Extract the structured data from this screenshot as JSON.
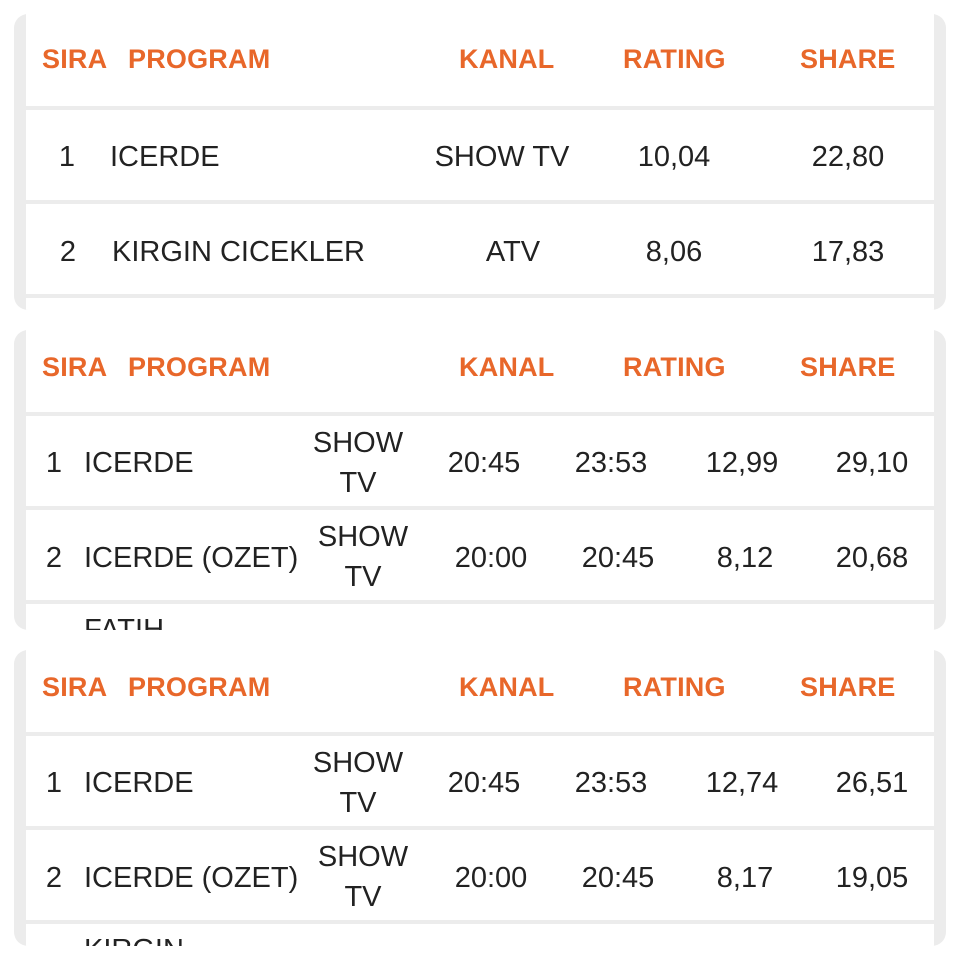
{
  "panels": [
    {
      "headers": {
        "sira": "SIRA",
        "program": "PROGRAM",
        "kanal": "KANAL",
        "rating": "RATING",
        "share": "SHARE"
      },
      "rows": [
        {
          "rank": "1",
          "program": "ICERDE",
          "channel": "SHOW TV",
          "rating": "10,04",
          "share": "22,80"
        },
        {
          "rank": "2",
          "program": "KIRGIN CICEKLER",
          "channel": "ATV",
          "rating": "8,06",
          "share": "17,83"
        }
      ]
    },
    {
      "headers": {
        "sira": "SIRA",
        "program": "PROGRAM",
        "kanal": "KANAL",
        "rating": "RATING",
        "share": "SHARE"
      },
      "rows": [
        {
          "rank": "1",
          "program": "ICERDE",
          "channel_line1": "SHOW",
          "channel_line2": "TV",
          "start": "20:45",
          "end": "23:53",
          "rating": "12,99",
          "share": "29,10"
        },
        {
          "rank": "2",
          "program": "ICERDE (OZET)",
          "channel_line1": "SHOW",
          "channel_line2": "TV",
          "start": "20:00",
          "end": "20:45",
          "rating": "8,12",
          "share": "20,68"
        }
      ],
      "clipped_text": "FATIH"
    },
    {
      "headers": {
        "sira": "SIRA",
        "program": "PROGRAM",
        "kanal": "KANAL",
        "rating": "RATING",
        "share": "SHARE"
      },
      "rows": [
        {
          "rank": "1",
          "program": "ICERDE",
          "channel_line1": "SHOW",
          "channel_line2": "TV",
          "start": "20:45",
          "end": "23:53",
          "rating": "12,74",
          "share": "26,51"
        },
        {
          "rank": "2",
          "program": "ICERDE (OZET)",
          "channel_line1": "SHOW",
          "channel_line2": "TV",
          "start": "20:00",
          "end": "20:45",
          "rating": "8,17",
          "share": "19,05"
        }
      ],
      "clipped_text": "KIRGIN"
    }
  ],
  "colors": {
    "header_text": "#e8672a",
    "panel_bg": "#ececec",
    "text": "#222222"
  }
}
